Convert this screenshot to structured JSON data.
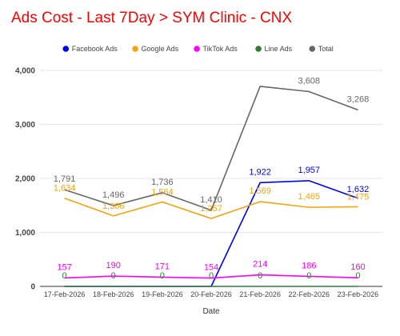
{
  "chart_data": {
    "type": "line",
    "title": "Ads Cost - Last 7Day > SYM Clinic - CNX",
    "xlabel": "Date",
    "ylabel": "",
    "ylim": [
      0,
      4000
    ],
    "yticks": [
      0,
      1000,
      2000,
      3000,
      4000
    ],
    "ytick_labels": [
      "0",
      "1,000",
      "2,000",
      "3,000",
      "4,000"
    ],
    "grid": true,
    "legend_position": "top",
    "categories": [
      "17-Feb-2026",
      "18-Feb-2026",
      "19-Feb-2026",
      "20-Feb-2026",
      "21-Feb-2026",
      "22-Feb-2026",
      "23-Feb-2026"
    ],
    "series": [
      {
        "name": "Facebook Ads",
        "color": "#0000ff",
        "values": [
          0,
          0,
          0,
          0,
          1922,
          1957,
          1632
        ],
        "labels": [
          null,
          null,
          null,
          null,
          "1,922",
          "1,957",
          "1,632"
        ]
      },
      {
        "name": "Google Ads",
        "color": "#f4a40c",
        "values": [
          1634,
          1306,
          1564,
          1257,
          1569,
          1465,
          1475
        ],
        "labels": [
          "1,634",
          "1,306",
          "1,564",
          "1,257",
          "1,569",
          "1,465",
          "1,475"
        ]
      },
      {
        "name": "TikTok Ads",
        "color": "#ff00ff",
        "values": [
          157,
          190,
          171,
          154,
          214,
          186,
          160
        ],
        "labels": [
          "157",
          "190",
          "171",
          "154",
          "214",
          "186",
          "160"
        ]
      },
      {
        "name": "Line Ads",
        "color": "#2e7d32",
        "values": [
          0,
          0,
          0,
          0,
          0,
          0,
          0
        ],
        "labels": [
          "0",
          "0",
          "0",
          "0",
          "0",
          "0",
          "0"
        ]
      },
      {
        "name": "Total",
        "color": "#666666",
        "values": [
          1791,
          1496,
          1736,
          1410,
          3705,
          3608,
          3268
        ],
        "labels": [
          "1,791",
          "1,496",
          "1,736",
          "1,410",
          null,
          "3,608",
          "3,268"
        ]
      }
    ]
  }
}
